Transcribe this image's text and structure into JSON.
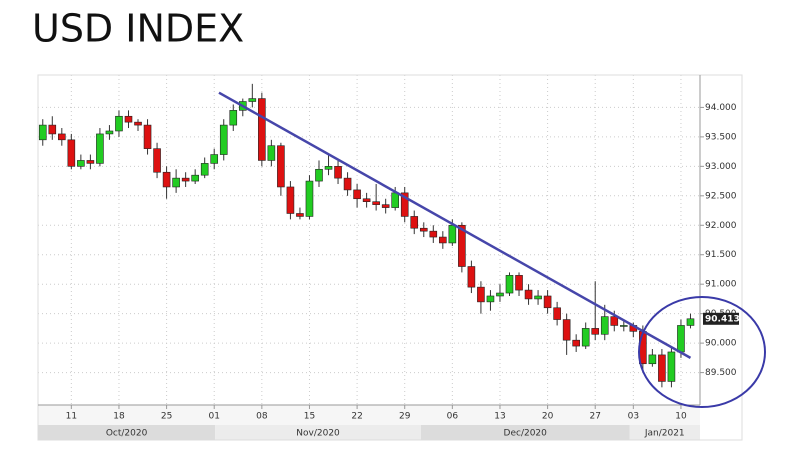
{
  "chart_data": {
    "type": "candlestick",
    "title": "USD INDEX",
    "up_color": "#22cc22",
    "down_color": "#dd1111",
    "grid": true,
    "xlim": [
      -0.5,
      69
    ],
    "ylim": [
      88.95,
      94.55
    ],
    "yticks": [
      {
        "value": 89.5,
        "label": "89.500"
      },
      {
        "value": 90,
        "label": "90.000"
      },
      {
        "value": 90.5,
        "label": "90.500"
      },
      {
        "value": 91,
        "label": "91.000"
      },
      {
        "value": 91.5,
        "label": "91.500"
      },
      {
        "value": 92,
        "label": "92.000"
      },
      {
        "value": 92.5,
        "label": "92.500"
      },
      {
        "value": 93,
        "label": "93.000"
      },
      {
        "value": 93.5,
        "label": "93.500"
      },
      {
        "value": 94,
        "label": "94.000"
      }
    ],
    "xticks": [
      {
        "value": 3,
        "label": "11"
      },
      {
        "value": 8,
        "label": "18"
      },
      {
        "value": 13,
        "label": "25"
      },
      {
        "value": 18,
        "label": "01"
      },
      {
        "value": 23,
        "label": "08"
      },
      {
        "value": 28,
        "label": "15"
      },
      {
        "value": 33,
        "label": "22"
      },
      {
        "value": 38,
        "label": "29"
      },
      {
        "value": 43,
        "label": "06"
      },
      {
        "value": 48,
        "label": "13"
      },
      {
        "value": 53,
        "label": "20"
      },
      {
        "value": 58,
        "label": "27"
      },
      {
        "value": 62,
        "label": "03"
      },
      {
        "value": 67,
        "label": "10"
      }
    ],
    "months": [
      {
        "label": "Oct/2020",
        "start": -0.5,
        "end": 18.1
      },
      {
        "label": "Nov/2020",
        "start": 18.1,
        "end": 39.7
      },
      {
        "label": "Dec/2020",
        "start": 39.7,
        "end": 61.6
      },
      {
        "label": "Jan/2021",
        "start": 61.6,
        "end": 69
      }
    ],
    "open": [
      93.45,
      93.7,
      93.55,
      93.45,
      93.0,
      93.1,
      93.05,
      93.55,
      93.6,
      93.85,
      93.75,
      93.7,
      93.3,
      92.9,
      92.65,
      92.8,
      92.75,
      92.85,
      93.05,
      93.2,
      93.7,
      93.95,
      94.1,
      94.15,
      93.1,
      93.35,
      92.65,
      92.2,
      92.15,
      92.75,
      92.95,
      93.0,
      92.8,
      92.6,
      92.45,
      92.4,
      92.35,
      92.3,
      92.55,
      92.15,
      91.95,
      91.9,
      91.8,
      91.7,
      92.0,
      91.3,
      90.95,
      90.7,
      90.8,
      90.85,
      91.15,
      90.9,
      90.75,
      90.8,
      90.6,
      90.4,
      90.05,
      89.95,
      90.25,
      90.15,
      90.45,
      90.3,
      90.3,
      90.2,
      89.65,
      89.8,
      89.35,
      89.85,
      90.3
    ],
    "high": [
      93.8,
      93.85,
      93.65,
      93.55,
      93.2,
      93.2,
      93.65,
      93.7,
      93.95,
      93.95,
      93.8,
      93.8,
      93.4,
      93.0,
      92.95,
      92.9,
      92.95,
      93.15,
      93.3,
      93.8,
      94.05,
      94.15,
      94.4,
      94.25,
      93.45,
      93.4,
      92.75,
      92.3,
      92.85,
      93.1,
      93.2,
      93.1,
      92.9,
      92.7,
      92.55,
      92.7,
      92.45,
      92.65,
      92.65,
      92.25,
      92.05,
      92.0,
      91.9,
      92.1,
      92.05,
      91.4,
      91.05,
      90.9,
      91.0,
      91.2,
      91.2,
      91.0,
      90.9,
      90.9,
      90.7,
      90.5,
      90.15,
      90.35,
      91.05,
      90.65,
      90.55,
      90.4,
      90.35,
      90.3,
      89.9,
      89.9,
      89.95,
      90.4,
      90.5
    ],
    "low": [
      93.35,
      93.45,
      93.35,
      92.95,
      92.95,
      92.95,
      93.0,
      93.45,
      93.5,
      93.65,
      93.6,
      93.2,
      92.8,
      92.45,
      92.55,
      92.65,
      92.7,
      92.8,
      92.95,
      93.1,
      93.6,
      93.85,
      94.0,
      93.0,
      93.0,
      92.5,
      92.1,
      92.1,
      92.1,
      92.65,
      92.85,
      92.7,
      92.5,
      92.3,
      92.3,
      92.25,
      92.2,
      92.25,
      92.05,
      91.85,
      91.8,
      91.7,
      91.6,
      91.65,
      91.2,
      90.85,
      90.5,
      90.55,
      90.7,
      90.8,
      90.8,
      90.65,
      90.65,
      90.5,
      90.3,
      89.8,
      89.85,
      89.9,
      90.05,
      90.05,
      90.2,
      90.2,
      90.1,
      89.55,
      89.6,
      89.25,
      89.25,
      89.75,
      90.25
    ],
    "close": [
      93.7,
      93.55,
      93.45,
      93.0,
      93.1,
      93.05,
      93.55,
      93.6,
      93.85,
      93.75,
      93.7,
      93.3,
      92.9,
      92.65,
      92.8,
      92.75,
      92.85,
      93.05,
      93.2,
      93.7,
      93.95,
      94.1,
      94.15,
      93.1,
      93.35,
      92.65,
      92.2,
      92.15,
      92.75,
      92.95,
      93.0,
      92.8,
      92.6,
      92.45,
      92.4,
      92.35,
      92.3,
      92.55,
      92.15,
      91.95,
      91.9,
      91.8,
      91.7,
      92.0,
      91.3,
      90.95,
      90.7,
      90.8,
      90.85,
      91.15,
      90.9,
      90.75,
      90.8,
      90.6,
      90.4,
      90.05,
      89.95,
      90.25,
      90.15,
      90.45,
      90.3,
      90.3,
      90.2,
      89.65,
      89.8,
      89.35,
      89.85,
      90.3,
      90.413
    ],
    "last_label": "90.413",
    "trendline": {
      "color": "#4646aa",
      "x": [
        18.5,
        68
      ],
      "y": [
        94.25,
        89.75
      ]
    }
  }
}
